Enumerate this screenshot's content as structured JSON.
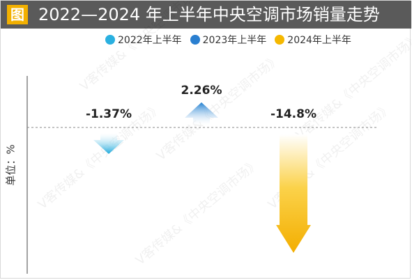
{
  "badge": "图",
  "title": "2022—2024 年上半年中央空调市场销量走势",
  "watermark": "V客传媒&《中央空调市场》",
  "chart_data": {
    "type": "bar",
    "title": "2022—2024 年上半年中央空调市场销量走势",
    "ylabel": "单位：%",
    "categories": [
      "2022年上半年",
      "2023年上半年",
      "2024年上半年"
    ],
    "values": [
      -1.37,
      2.26,
      -14.8
    ],
    "data_labels": [
      "-1.37%",
      "2.26%",
      "-14.8%"
    ],
    "series": [
      {
        "name": "2022年上半年",
        "color": "#2ab0e0"
      },
      {
        "name": "2023年上半年",
        "color": "#2a7fd0"
      },
      {
        "name": "2024年上半年",
        "color": "#f5b800"
      }
    ],
    "ylim": [
      -15,
      4
    ],
    "legend_position": "top",
    "grid": false
  }
}
